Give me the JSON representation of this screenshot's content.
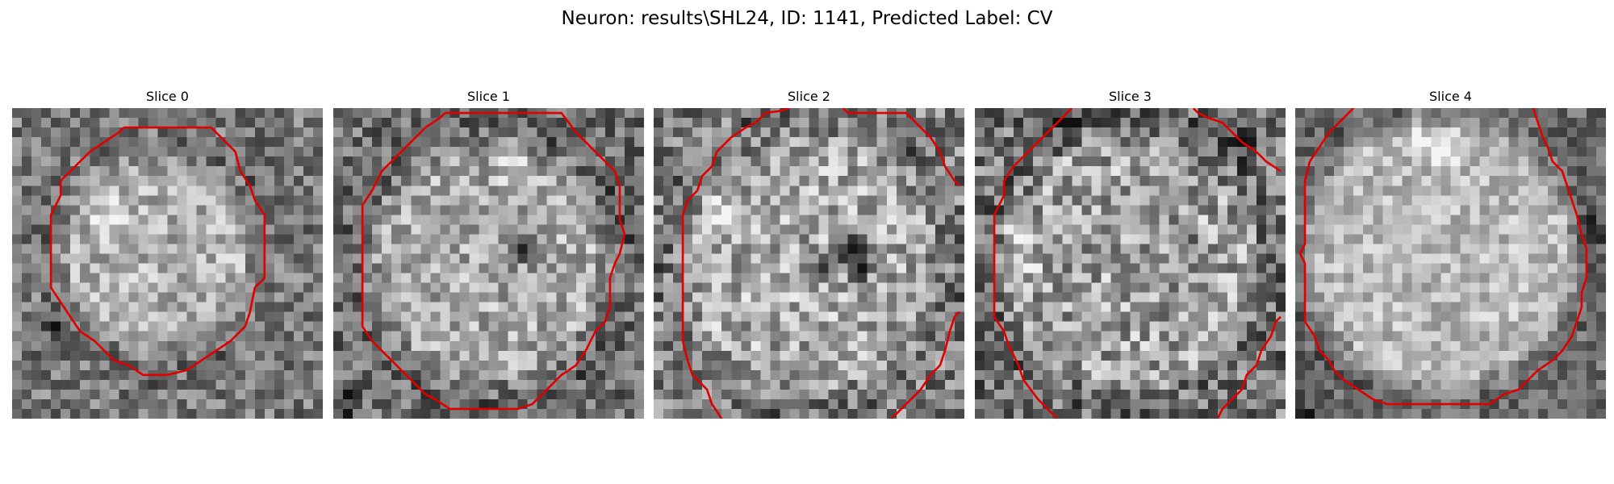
{
  "figure": {
    "title": "Neuron: results\\SHL24, ID: 1141, Predicted Label: CV"
  },
  "slices": [
    {
      "title": "Slice 0"
    },
    {
      "title": "Slice 1"
    },
    {
      "title": "Slice 2"
    },
    {
      "title": "Slice 3"
    },
    {
      "title": "Slice 4"
    }
  ],
  "colors": {
    "contour": "#e00000",
    "colormap": "gray"
  }
}
